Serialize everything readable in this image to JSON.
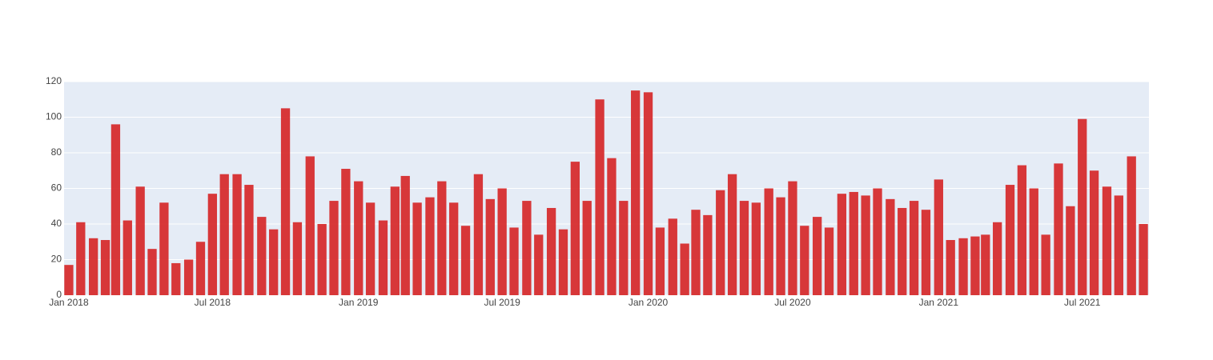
{
  "chart_data": {
    "type": "bar",
    "x": [
      "2018-01-01",
      "2018-01-16",
      "2018-02-01",
      "2018-02-16",
      "2018-03-01",
      "2018-03-16",
      "2018-04-01",
      "2018-04-16",
      "2018-05-01",
      "2018-05-16",
      "2018-06-01",
      "2018-06-16",
      "2018-07-01",
      "2018-07-16",
      "2018-08-01",
      "2018-08-16",
      "2018-09-01",
      "2018-09-16",
      "2018-10-01",
      "2018-10-16",
      "2018-11-01",
      "2018-11-16",
      "2018-12-01",
      "2018-12-16",
      "2019-01-01",
      "2019-01-16",
      "2019-02-01",
      "2019-02-16",
      "2019-03-01",
      "2019-03-16",
      "2019-04-01",
      "2019-04-16",
      "2019-05-01",
      "2019-05-16",
      "2019-06-01",
      "2019-06-16",
      "2019-07-01",
      "2019-07-16",
      "2019-08-01",
      "2019-08-16",
      "2019-09-01",
      "2019-09-16",
      "2019-10-01",
      "2019-10-16",
      "2019-11-01",
      "2019-11-16",
      "2019-12-01",
      "2019-12-16",
      "2020-01-01",
      "2020-01-16",
      "2020-02-01",
      "2020-02-16",
      "2020-03-01",
      "2020-03-16",
      "2020-04-01",
      "2020-04-16",
      "2020-05-01",
      "2020-05-16",
      "2020-06-01",
      "2020-06-16",
      "2020-07-01",
      "2020-07-16",
      "2020-08-01",
      "2020-08-16",
      "2020-09-01",
      "2020-09-16",
      "2020-10-01",
      "2020-10-16",
      "2020-11-01",
      "2020-11-16",
      "2020-12-01",
      "2020-12-16",
      "2021-01-01",
      "2021-01-16",
      "2021-02-01",
      "2021-02-16",
      "2021-03-01",
      "2021-03-16",
      "2021-04-01",
      "2021-04-16",
      "2021-05-01",
      "2021-05-16",
      "2021-06-01",
      "2021-06-16",
      "2021-07-01",
      "2021-07-16",
      "2021-08-01",
      "2021-08-16",
      "2021-09-01",
      "2021-09-16"
    ],
    "values": [
      17,
      41,
      32,
      31,
      96,
      42,
      61,
      26,
      52,
      18,
      20,
      30,
      57,
      68,
      68,
      62,
      44,
      37,
      105,
      41,
      78,
      40,
      53,
      71,
      64,
      52,
      42,
      61,
      67,
      52,
      55,
      64,
      52,
      39,
      68,
      54,
      60,
      38,
      53,
      34,
      49,
      37,
      75,
      53,
      110,
      77,
      53,
      115,
      114,
      38,
      43,
      29,
      48,
      45,
      59,
      68,
      53,
      52,
      60,
      55,
      64,
      39,
      44,
      38,
      57,
      58,
      56,
      60,
      54,
      49,
      53,
      48,
      65,
      31,
      32,
      33,
      34,
      41,
      62,
      73,
      60,
      34,
      74,
      50,
      99,
      70,
      61,
      56,
      78,
      40
    ],
    "color": "#d62728",
    "xlim": [
      "2017-12-26",
      "2021-09-23"
    ],
    "xticks": [
      {
        "value": "2018-01-01",
        "label": "Jan 2018"
      },
      {
        "value": "2018-07-01",
        "label": "Jul 2018"
      },
      {
        "value": "2019-01-01",
        "label": "Jan 2019"
      },
      {
        "value": "2019-07-01",
        "label": "Jul 2019"
      },
      {
        "value": "2020-01-01",
        "label": "Jan 2020"
      },
      {
        "value": "2020-07-01",
        "label": "Jul 2020"
      },
      {
        "value": "2021-01-01",
        "label": "Jan 2021"
      },
      {
        "value": "2021-07-01",
        "label": "Jul 2021"
      }
    ],
    "ylim": [
      0,
      120
    ],
    "yticks": [
      0,
      20,
      40,
      60,
      80,
      100,
      120
    ],
    "grid": true
  }
}
